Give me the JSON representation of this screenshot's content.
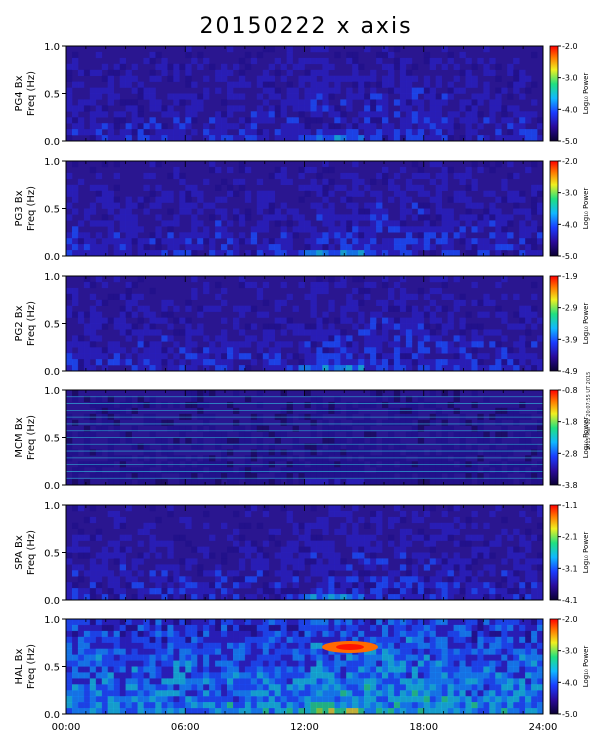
{
  "figure": {
    "title": "20150222 x axis",
    "stamp": "2015 Mar 02 20:07:55 UT 2015",
    "colorbar_label": "Log₁₀ Power"
  },
  "chart_data": [
    {
      "type": "heatmap",
      "station_label": "PG4 Bx",
      "ylabel": "Freq (Hz)",
      "ylim": [
        0.0,
        1.0
      ],
      "y_ticks": [
        "1.0",
        "0.5",
        "0.0"
      ],
      "colorbar_ticks": [
        "-2.0",
        "-3.0",
        "-4.0",
        "-5.0"
      ],
      "colorbar_range": [
        -5.0,
        -2.0
      ]
    },
    {
      "type": "heatmap",
      "station_label": "PG3 Bx",
      "ylabel": "Freq (Hz)",
      "ylim": [
        0.0,
        1.0
      ],
      "y_ticks": [
        "1.0",
        "0.5",
        "0.0"
      ],
      "colorbar_ticks": [
        "-2.0",
        "-3.0",
        "-4.0",
        "-5.0"
      ],
      "colorbar_range": [
        -5.0,
        -2.0
      ]
    },
    {
      "type": "heatmap",
      "station_label": "PG2 Bx",
      "ylabel": "Freq (Hz)",
      "ylim": [
        0.0,
        1.0
      ],
      "y_ticks": [
        "1.0",
        "0.5",
        "0.0"
      ],
      "colorbar_ticks": [
        "-1.9",
        "-2.9",
        "-3.9",
        "-4.9"
      ],
      "colorbar_range": [
        -4.9,
        -1.9
      ]
    },
    {
      "type": "heatmap",
      "station_label": "MCM Bx",
      "ylabel": "Freq (Hz)",
      "ylim": [
        0.0,
        1.0
      ],
      "y_ticks": [
        "1.0",
        "0.5",
        "0.0"
      ],
      "colorbar_ticks": [
        "-0.8",
        "-1.8",
        "-2.8",
        "-3.8"
      ],
      "colorbar_range": [
        -3.8,
        -0.8
      ]
    },
    {
      "type": "heatmap",
      "station_label": "SPA Bx",
      "ylabel": "Freq (Hz)",
      "ylim": [
        0.0,
        1.0
      ],
      "y_ticks": [
        "1.0",
        "0.5",
        "0.0"
      ],
      "colorbar_ticks": [
        "-1.1",
        "-2.1",
        "-3.1",
        "-4.1"
      ],
      "colorbar_range": [
        -4.1,
        -1.1
      ]
    },
    {
      "type": "heatmap",
      "station_label": "HAL Bx",
      "ylabel": "Freq (Hz)",
      "ylim": [
        0.0,
        1.0
      ],
      "y_ticks": [
        "1.0",
        "0.5",
        "0.0"
      ],
      "colorbar_ticks": [
        "-2.0",
        "-3.0",
        "-4.0",
        "-5.0"
      ],
      "colorbar_range": [
        -5.0,
        -2.0
      ]
    }
  ],
  "x_axis": {
    "ticks": [
      "00:00",
      "06:00",
      "12:00",
      "18:00",
      "24:00"
    ],
    "range_hours": [
      0,
      24
    ]
  }
}
